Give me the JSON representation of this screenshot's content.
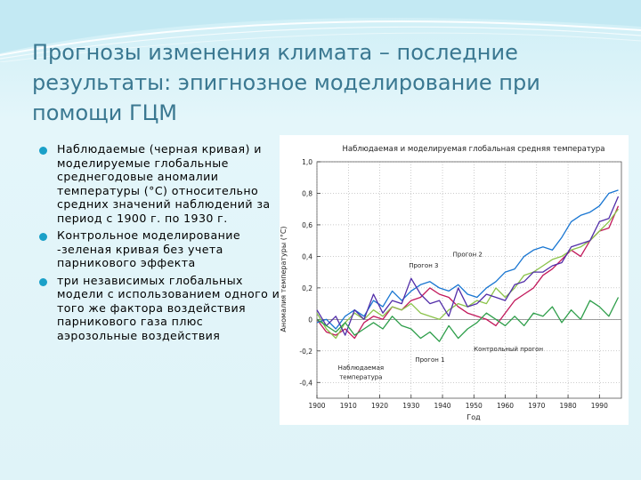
{
  "slide": {
    "title": "Прогнозы изменения климата – последние результаты: эпигнозное моделирование при помощи ГЦМ",
    "bullets": [
      "Наблюдаемые (черная кривая) и моделируемые глобальные среднегодовые аномалии температуры (°C) относительно средних значений наблюдений за период с 1900 г. по 1930 г.",
      "Контрольное моделирование -зеленая кривая  без учета парникового эффекта",
      "три независимых глобальных модели с использованием одного и того же фактора воздействия парникового газа плюс аэрозольные воздействия"
    ],
    "bullet_color": "#1aa0c8"
  },
  "chart_data": {
    "type": "line",
    "title": "Наблюдаемая и моделируемая глобальная средняя температура",
    "xlabel": "Год",
    "ylabel": "Аномалия температуры (°С)",
    "xlim": [
      1900,
      1997
    ],
    "ylim": [
      -0.5,
      1.0
    ],
    "xticks": [
      1900,
      1910,
      1920,
      1930,
      1940,
      1950,
      1960,
      1970,
      1980,
      1990
    ],
    "yticks": [
      -0.4,
      -0.2,
      0,
      0.2,
      0.4,
      0.6,
      0.8,
      1.0
    ],
    "ytick_labels": [
      "-0,4",
      "-0,2",
      "0",
      "0,2",
      "0,4",
      "0,6",
      "0,8",
      "1,0"
    ],
    "x_step": 3,
    "x_start": 1900,
    "series": [
      {
        "key": "observed",
        "color": "#c2185b",
        "values": [
          0.0,
          -0.08,
          -0.1,
          -0.06,
          -0.12,
          -0.02,
          0.02,
          0.0,
          0.08,
          0.06,
          0.12,
          0.14,
          0.2,
          0.16,
          0.14,
          0.08,
          0.04,
          0.02,
          0.0,
          -0.04,
          0.04,
          0.12,
          0.16,
          0.2,
          0.28,
          0.32,
          0.38,
          0.44,
          0.4,
          0.5,
          0.56,
          0.58,
          0.72
        ]
      },
      {
        "key": "run1",
        "color": "#8bc34a",
        "values": [
          0.04,
          -0.06,
          -0.12,
          -0.02,
          0.04,
          0.0,
          0.06,
          0.02,
          0.08,
          0.06,
          0.1,
          0.04,
          0.02,
          0.0,
          0.06,
          0.1,
          0.08,
          0.12,
          0.1,
          0.2,
          0.14,
          0.2,
          0.28,
          0.3,
          0.34,
          0.38,
          0.4,
          0.44,
          0.46,
          0.5,
          0.56,
          0.62,
          0.7
        ]
      },
      {
        "key": "run2",
        "color": "#1976d2",
        "values": [
          -0.02,
          0.0,
          -0.06,
          0.02,
          0.06,
          0.02,
          0.12,
          0.08,
          0.18,
          0.12,
          0.18,
          0.22,
          0.24,
          0.2,
          0.18,
          0.22,
          0.16,
          0.14,
          0.2,
          0.24,
          0.3,
          0.32,
          0.4,
          0.44,
          0.46,
          0.44,
          0.52,
          0.62,
          0.66,
          0.68,
          0.72,
          0.8,
          0.82
        ]
      },
      {
        "key": "run3",
        "color": "#512da8",
        "values": [
          0.06,
          -0.04,
          0.02,
          -0.1,
          0.06,
          0.0,
          0.16,
          0.04,
          0.12,
          0.1,
          0.26,
          0.16,
          0.1,
          0.12,
          0.02,
          0.2,
          0.08,
          0.1,
          0.16,
          0.14,
          0.12,
          0.22,
          0.24,
          0.3,
          0.3,
          0.34,
          0.36,
          0.46,
          0.48,
          0.5,
          0.62,
          0.64,
          0.78
        ]
      },
      {
        "key": "control",
        "color": "#2e9e4a",
        "values": [
          0.0,
          -0.04,
          -0.08,
          -0.02,
          -0.1,
          -0.06,
          -0.02,
          -0.06,
          0.02,
          -0.04,
          -0.06,
          -0.12,
          -0.08,
          -0.14,
          -0.04,
          -0.12,
          -0.06,
          -0.02,
          0.04,
          0.0,
          -0.04,
          0.02,
          -0.04,
          0.04,
          0.02,
          0.08,
          -0.02,
          0.06,
          0.0,
          0.12,
          0.08,
          0.02,
          0.14
        ]
      }
    ],
    "annotations": [
      {
        "text": "Прогон 2",
        "x": 1948,
        "y": 0.4
      },
      {
        "text": "Прогон 3",
        "x": 1934,
        "y": 0.33
      },
      {
        "text": "Прогон 1",
        "x": 1936,
        "y": -0.27
      },
      {
        "text": "Наблюдаемая",
        "x": 1914,
        "y": -0.32
      },
      {
        "text": "температура",
        "x": 1914,
        "y": -0.38
      },
      {
        "text": "Контрольный прогон",
        "x": 1961,
        "y": -0.2
      }
    ]
  }
}
